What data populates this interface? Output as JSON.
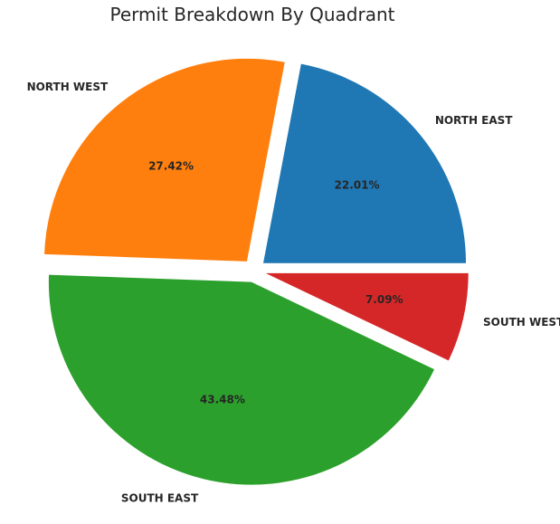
{
  "chart_data": {
    "type": "pie",
    "title": "Permit Breakdown By Quadrant",
    "start_angle_deg": 0,
    "direction": "counterclockwise",
    "explode": true,
    "legend": "none",
    "slices": [
      {
        "name": "NORTH EAST",
        "value": 22.01,
        "pct_label": "22.01%",
        "color": "#1f77b4"
      },
      {
        "name": "NORTH WEST",
        "value": 27.42,
        "pct_label": "27.42%",
        "color": "#ff7f0e"
      },
      {
        "name": "SOUTH EAST",
        "value": 43.48,
        "pct_label": "43.48%",
        "color": "#2ca02c"
      },
      {
        "name": "SOUTH WEST",
        "value": 7.09,
        "pct_label": "7.09%",
        "color": "#d62728"
      }
    ]
  }
}
